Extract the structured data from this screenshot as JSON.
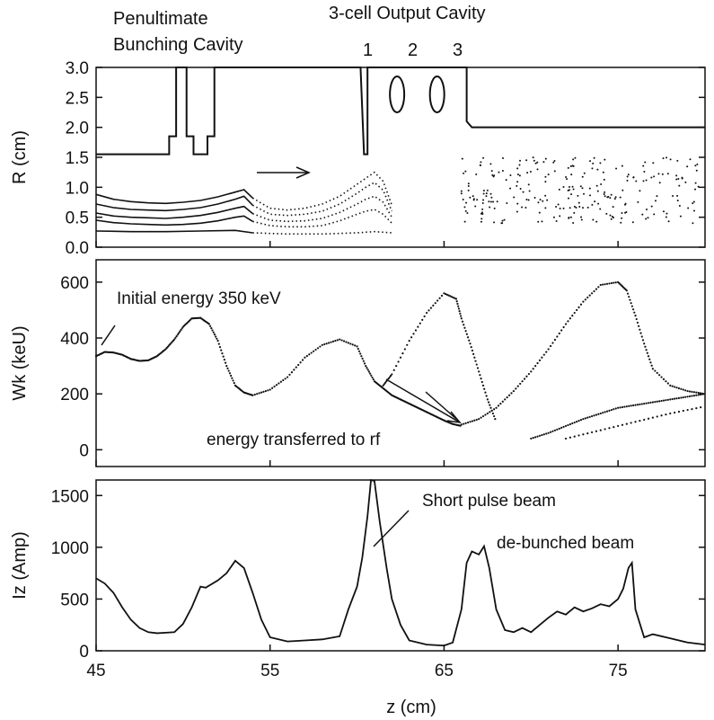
{
  "header": {
    "left_line1": "Penultimate",
    "left_line2": "Bunching Cavity",
    "right": "3-cell  Output Cavity",
    "cells": [
      "1",
      "2",
      "3"
    ]
  },
  "annotations": {
    "initial_energy": "Initial energy 350 keV",
    "energy_transferred": "energy transferred to rf",
    "short_pulse": "Short pulse beam",
    "debunched": "de-bunched beam"
  },
  "chart_data": [
    {
      "type": "line",
      "panel": "radius",
      "ylabel": "R (cm)",
      "xlim": [
        45,
        80
      ],
      "ylim": [
        0,
        3.0
      ],
      "yticks": [
        "0.0",
        "0.5",
        "1.0",
        "1.5",
        "2.0",
        "2.5",
        "3.0"
      ],
      "cavity_wall": {
        "x": [
          45,
          49.2,
          49.2,
          49.6,
          49.6,
          50.2,
          50.2,
          50.6,
          50.6,
          51.4,
          51.4,
          51.8,
          51.8,
          60.2,
          60.4,
          60.6,
          60.6,
          66.3,
          66.3,
          66.6,
          80
        ],
        "y": [
          1.55,
          1.55,
          1.85,
          1.85,
          3.0,
          3.0,
          1.85,
          1.85,
          1.55,
          1.55,
          1.85,
          1.85,
          3.0,
          3.0,
          1.55,
          1.55,
          3.0,
          3.0,
          2.1,
          2.0,
          2.0
        ]
      },
      "trajectories": [
        {
          "x": [
            45,
            46,
            47,
            48,
            49,
            50,
            51,
            52,
            53,
            53.5,
            54,
            55,
            56,
            57,
            58,
            59,
            60,
            60.5,
            61,
            61.5,
            62
          ],
          "y": [
            0.88,
            0.8,
            0.76,
            0.74,
            0.73,
            0.75,
            0.78,
            0.84,
            0.92,
            0.96,
            0.82,
            0.65,
            0.62,
            0.65,
            0.72,
            0.85,
            1.05,
            1.15,
            1.25,
            1.1,
            0.7
          ]
        },
        {
          "x": [
            45,
            46,
            47,
            48,
            49,
            50,
            51,
            52,
            53,
            53.5,
            54,
            55,
            56,
            57,
            58,
            59,
            60,
            60.5,
            61,
            61.5,
            62
          ],
          "y": [
            0.72,
            0.66,
            0.63,
            0.62,
            0.61,
            0.63,
            0.66,
            0.72,
            0.8,
            0.85,
            0.7,
            0.55,
            0.53,
            0.55,
            0.6,
            0.72,
            0.9,
            1.0,
            1.08,
            0.95,
            0.6
          ]
        },
        {
          "x": [
            45,
            46,
            47,
            48,
            49,
            50,
            51,
            52,
            53,
            53.5,
            54,
            55,
            56,
            57,
            58,
            59,
            60,
            60.5,
            61,
            61.5,
            62
          ],
          "y": [
            0.57,
            0.52,
            0.5,
            0.49,
            0.48,
            0.5,
            0.53,
            0.58,
            0.65,
            0.68,
            0.56,
            0.45,
            0.43,
            0.44,
            0.48,
            0.58,
            0.72,
            0.8,
            0.85,
            0.75,
            0.5
          ]
        },
        {
          "x": [
            45,
            46,
            47,
            48,
            49,
            50,
            51,
            52,
            53,
            53.5,
            54,
            55,
            56,
            57,
            58,
            59,
            60,
            60.5,
            61,
            61.5,
            62
          ],
          "y": [
            0.45,
            0.41,
            0.39,
            0.38,
            0.37,
            0.38,
            0.4,
            0.44,
            0.5,
            0.52,
            0.43,
            0.36,
            0.34,
            0.34,
            0.36,
            0.44,
            0.55,
            0.6,
            0.63,
            0.55,
            0.4
          ]
        },
        {
          "x": [
            45,
            47,
            49,
            51,
            53,
            54,
            56,
            58,
            60,
            61,
            62
          ],
          "y": [
            0.27,
            0.26,
            0.26,
            0.27,
            0.28,
            0.24,
            0.22,
            0.22,
            0.24,
            0.26,
            0.24
          ]
        }
      ]
    },
    {
      "type": "scatter",
      "panel": "energy",
      "ylabel": "Wk (keU)",
      "xlim": [
        45,
        80
      ],
      "ylim": [
        -60,
        680
      ],
      "yticks": [
        "0",
        "200",
        "400",
        "600"
      ],
      "series": [
        {
          "x": [
            45,
            45.5,
            46,
            46.5,
            47,
            47.5,
            48,
            48.5,
            49,
            49.5,
            50,
            50.5,
            51,
            51.5,
            52,
            52.5,
            53,
            53.5,
            54,
            55,
            56,
            57,
            58,
            59,
            60,
            60.5,
            61,
            61.5,
            62,
            62.5,
            63,
            63.5,
            64,
            64.5,
            65,
            65.5,
            66
          ],
          "y": [
            335,
            350,
            348,
            340,
            325,
            318,
            320,
            335,
            360,
            395,
            440,
            470,
            472,
            450,
            390,
            300,
            230,
            205,
            195,
            215,
            260,
            330,
            375,
            395,
            370,
            300,
            245,
            220,
            195,
            180,
            165,
            150,
            135,
            120,
            105,
            92,
            85
          ]
        },
        {
          "x": [
            61.5,
            62,
            63,
            64,
            65,
            65.7,
            66,
            66.5,
            67,
            67.5,
            68
          ],
          "y": [
            230,
            270,
            390,
            490,
            560,
            540,
            470,
            380,
            280,
            180,
            100
          ]
        },
        {
          "x": [
            66,
            67,
            68,
            69,
            70,
            71,
            72,
            73,
            74,
            75,
            75.5,
            76,
            76.5,
            77,
            78,
            79,
            80
          ],
          "y": [
            90,
            110,
            150,
            210,
            280,
            360,
            450,
            530,
            590,
            600,
            570,
            480,
            380,
            290,
            230,
            210,
            200
          ]
        },
        {
          "x": [
            70,
            71,
            72,
            73,
            74,
            75,
            76,
            77,
            78,
            79,
            80
          ],
          "y": [
            40,
            60,
            85,
            110,
            130,
            150,
            160,
            170,
            180,
            190,
            200
          ]
        },
        {
          "x": [
            72,
            74,
            76,
            78,
            80
          ],
          "y": [
            40,
            70,
            100,
            130,
            155
          ]
        }
      ]
    },
    {
      "type": "line",
      "panel": "current",
      "ylabel": "Iz (Amp)",
      "xlabel": "z (cm)",
      "xlim": [
        45,
        80
      ],
      "ylim": [
        0,
        1650
      ],
      "yticks": [
        "0",
        "500",
        "1000",
        "1500"
      ],
      "xticks": [
        "45",
        "55",
        "65",
        "75"
      ],
      "x": [
        45,
        45.5,
        46,
        46.5,
        47,
        47.5,
        48,
        48.5,
        49,
        49.5,
        50,
        50.5,
        51,
        51.3,
        52,
        52.5,
        53,
        53.5,
        54,
        54.5,
        55,
        56,
        57,
        58,
        59,
        59.5,
        60,
        60.3,
        60.6,
        60.8,
        61,
        61.3,
        61.7,
        62,
        62.5,
        63,
        64,
        65,
        65.5,
        66,
        66.3,
        66.6,
        67,
        67.3,
        67.6,
        68,
        68.5,
        69,
        69.5,
        70,
        70.5,
        71,
        71.5,
        72,
        72.5,
        73,
        73.5,
        74,
        74.5,
        75,
        75.3,
        75.6,
        75.8,
        76,
        76.5,
        77,
        78,
        79,
        80
      ],
      "y": [
        700,
        650,
        560,
        420,
        300,
        220,
        180,
        170,
        175,
        180,
        260,
        420,
        620,
        610,
        680,
        750,
        870,
        800,
        560,
        300,
        130,
        90,
        100,
        110,
        140,
        400,
        620,
        900,
        1300,
        1650,
        1640,
        1250,
        800,
        500,
        250,
        100,
        60,
        50,
        80,
        400,
        850,
        960,
        930,
        1010,
        800,
        400,
        200,
        180,
        220,
        180,
        250,
        320,
        380,
        350,
        420,
        380,
        410,
        450,
        430,
        500,
        600,
        800,
        850,
        400,
        130,
        160,
        120,
        80,
        60
      ]
    }
  ]
}
